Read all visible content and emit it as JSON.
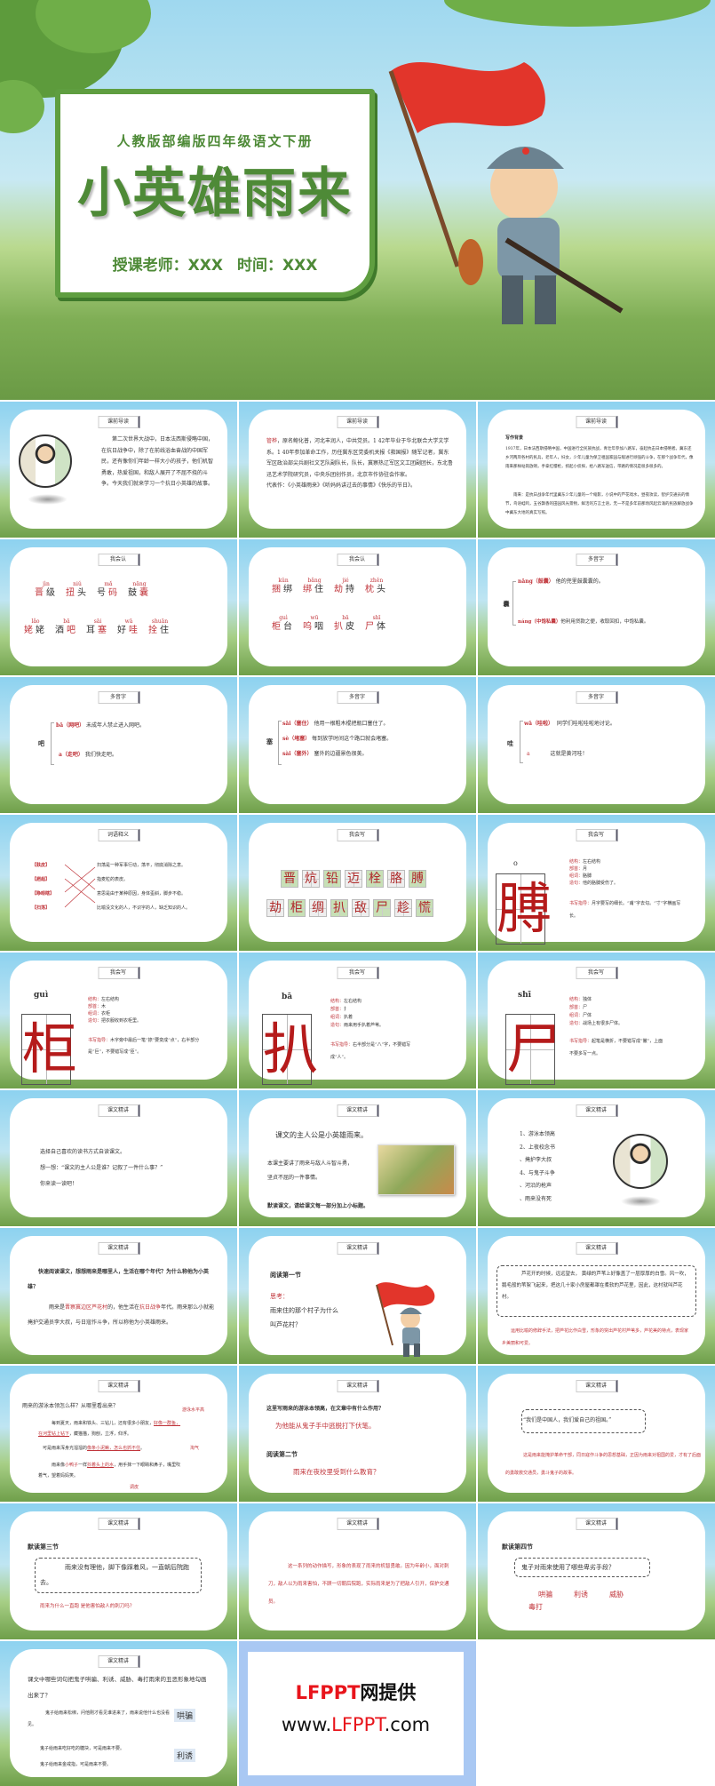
{
  "cover": {
    "subtitle": "人教版部编版四年级语文下册",
    "title": "小英雄雨来",
    "teacher": "授课老师：XXX",
    "time": "时间：XXX"
  },
  "slides": [
    {
      "header": "课前导读",
      "text": "第二次世界大战中，日本法西斯侵略中国，在抗日战争中，除了在前线浴血奋战的中国军民，还有像你们年龄一样大小的孩子，他们机智勇敢，热爱祖国，和敌人展开了不屈不挠的斗争。今天我们就来学习一个抗日小英雄的故事。"
    },
    {
      "header": "课前导读",
      "author": "管桦",
      "bio": "，原名鲍化普，河北丰润人，中共党员。1 42年毕业于华北联合大学文学系。1 40年参加革命工作，历任冀东区党委机关报《救国报》随军记者，冀东军区政治部尖兵剧社文艺队副队长，队长，冀察热辽军区文工团副团长，东北鲁迅艺术学院研究员，中央乐团创作员，北京市作协驻会作家。",
      "works": "代表作：《小英雄雨来》《听妈妈讲过去的事情》《快乐的节日》。"
    },
    {
      "header": "课前导读",
      "title": "写作背景",
      "p1": "1937年，日本法西斯侵略中国，中国进行全民族抗战，青壮年参加八路军，奋起抗击日本侵略者。冀东还乡河两岸各村的民兵，老年人，妇女，少年儿童为保卫祖国家园与敌进行顽强的斗争，在那个战争年代，像雨来那样站岗放哨，手拿红缨枪，抓起小侦探，给八路军送信，带路的情况是很多很多的。",
      "p2": "雨来：是抗日战争年代里冀东少年儿童的一个缩影，小说中的芦花戏水，昼夜攻读，智护交通员的情节，鸟语蛙鸣，五谷飘香的田园风光景物，鲜活的方言土语，无一不是多年前那场风起云涌的民族解放战争中冀东大地的真实写照。"
    },
    {
      "header": "我会认",
      "row1": [
        {
          "py": "jìn",
          "pre": "",
          "red": "晋",
          "post": "级"
        },
        {
          "py": "niǔ",
          "pre": "",
          "red": "扭",
          "post": "头"
        },
        {
          "py": "mǎ",
          "pre": "号",
          "red": "码",
          "post": ""
        },
        {
          "py": "nāng",
          "pre": "鼓",
          "red": "囊",
          "post": ""
        }
      ],
      "row2": [
        {
          "py": "lǎo",
          "pre": "",
          "red": "姥",
          "post": "姥"
        },
        {
          "py": "bā",
          "pre": "酒",
          "red": "吧",
          "post": ""
        },
        {
          "py": "sāi",
          "pre": "耳",
          "red": "塞",
          "post": ""
        },
        {
          "py": "wā",
          "pre": "好",
          "red": "哇",
          "post": ""
        },
        {
          "py": "shuān",
          "pre": "",
          "red": "拴",
          "post": "住"
        }
      ]
    },
    {
      "header": "我会认",
      "row1": [
        {
          "py": "kǔn",
          "pre": "",
          "red": "捆",
          "post": "绑"
        },
        {
          "py": "bǎng",
          "pre": "",
          "red": "绑",
          "post": "住"
        },
        {
          "py": "jié",
          "pre": "",
          "red": "劫",
          "post": "持"
        },
        {
          "py": "zhěn",
          "pre": "",
          "red": "枕",
          "post": "头"
        }
      ],
      "row2": [
        {
          "py": "guì",
          "pre": "",
          "red": "柜",
          "post": "台"
        },
        {
          "py": "wū",
          "pre": "",
          "red": "呜",
          "post": "咽"
        },
        {
          "py": "bā",
          "pre": "",
          "red": "扒",
          "post": "皮"
        },
        {
          "py": "shī",
          "pre": "",
          "red": "尸",
          "post": "体"
        }
      ]
    },
    {
      "header": "多音字",
      "char": "囊",
      "items": [
        {
          "py": "nāng（鼓囊）",
          "ex": "他的兜里鼓囊囊的。"
        },
        {
          "py": "náng（中饱私囊）",
          "ex": "他利用贷款之便，收取回扣，中饱私囊。"
        }
      ]
    },
    {
      "header": "多音字",
      "char": "吧",
      "items": [
        {
          "py": "bā（网吧）",
          "ex": "未成年人禁止进入网吧。"
        },
        {
          "py": "a（走吧）",
          "ex": "我们快走吧。"
        }
      ]
    },
    {
      "header": "多音字",
      "char": "塞",
      "items": [
        {
          "py": "sāi（塞住）",
          "ex": "他用一根粗木棍把瓶口塞住了。"
        },
        {
          "py": "sè（堵塞）",
          "ex": "每到放学时间这个路口就会堵塞。"
        },
        {
          "py": "sài（塞外）",
          "ex": "塞外的边疆景色很美。"
        }
      ]
    },
    {
      "header": "多音字",
      "char": "哇",
      "items": [
        {
          "py": "wā（哇啦）",
          "ex": "同学们哇啦哇啦地讨论。"
        },
        {
          "py": "a",
          "ex": "这就是黄河哇！"
        }
      ]
    },
    {
      "header": "词语释义",
      "terms": [
        "【麸皮】",
        "【趔趄】",
        "【睁眼瞎】",
        "【扫荡】"
      ],
      "defs": [
        "扫荡是一种军事行动，荡平，彻底消除之意。",
        "指麦粒的表皮。",
        "意思是由于某种原因，身体歪斜，脚步不稳。",
        "比喻没文化的人，不识字的人，缺乏知识的人。"
      ]
    },
    {
      "header": "我会写",
      "row1": [
        "晋",
        "炕",
        "铅",
        "迈",
        "栓",
        "胳",
        "膊"
      ],
      "row2": [
        "劫",
        "柜",
        "绸",
        "扒",
        "敌",
        "尸",
        "趁",
        "慌"
      ]
    },
    {
      "header": "我会写",
      "py": "o",
      "char": "膊",
      "structure_label": "结构：",
      "structure": "左右结构",
      "radical_label": "部首：",
      "radical": "月",
      "word_label": "组词：",
      "word": "胳膊",
      "sentence_label": "造句：",
      "sentence": "他的胳膊受伤了。",
      "guide_label": "书写指导：",
      "guide": "月字要写的细长。“甫”字去勾。“寸”字横画写长。"
    },
    {
      "header": "我会写",
      "py": "guì",
      "char": "柜",
      "structure_label": "结构：",
      "structure": "左右结构",
      "radical_label": "部首：",
      "radical": "木",
      "word_label": "组词：",
      "word": "衣柜",
      "sentence_label": "造句：",
      "sentence": "把衣服收到衣柜里。",
      "guide_label": "书写指导：",
      "guide": "木字旁中最后一笔“捺”要变成“点”，右半部分是“巨”，不要错写成“臣”。"
    },
    {
      "header": "我会写",
      "py": "bā",
      "char": "扒",
      "structure_label": "结构：",
      "structure": "左右结构",
      "radical_label": "部首：",
      "radical": "扌",
      "word_label": "组词：",
      "word": "扒着",
      "sentence_label": "造句：",
      "sentence": "雨来用手扒着芦苇。",
      "guide_label": "书写指导：",
      "guide": "右半部分是“八”字，不要错写成“人”。"
    },
    {
      "header": "我会写",
      "py": "shī",
      "char": "尸",
      "structure_label": "结构：",
      "structure": "独体",
      "radical_label": "部首：",
      "radical": "尸",
      "word_label": "组词：",
      "word": "尸体",
      "sentence_label": "造句：",
      "sentence": "战场上有很多尸体。",
      "guide_label": "书写指导：",
      "guide": "起笔是横折，不要错写成“撇”，上面不要多写一点。"
    },
    {
      "header": "课文精讲",
      "lines": [
        "选择自己喜欢的读书方式自读课文。",
        "想一想：“课文的主人公是谁？记叙了一件什么事？”",
        "你来读一读吧！"
      ]
    },
    {
      "header": "课文精讲",
      "main": "课文的主人公是小英雄雨来。",
      "summary": "本课主要讲了雨来与敌人斗智斗勇，坚贞不屈的一件事情。",
      "task": "默读课文，请给课文每一部分加上小标题。"
    },
    {
      "header": "课文精讲",
      "list": [
        "1、游泳本领高",
        "2、上夜校念书",
        "、掩护李大叔",
        "4、与鬼子斗争",
        "、河沿的枪声",
        "、雨来没有死"
      ]
    },
    {
      "header": "课文精讲",
      "question": "快速阅读课文，想想雨来是哪里人，生活在哪个年代？为什么称他为小英雄？",
      "a1": "雨来是",
      "a2": "晋察冀边区芦花村",
      "a3": "的，他生活在",
      "a4": "抗日战争",
      "a5": "年代。雨来那么小就能掩护交通员李大叔，与日寇作斗争，所以称他为小英雄雨来。"
    },
    {
      "header": "课文精讲",
      "title": "阅读第一节",
      "think": "思考：",
      "question": "雨来住的那个村子为什么叫芦花村？"
    },
    {
      "header": "课文精讲",
      "quote": "芦花开的时候，远远望去， 黄绿的芦苇上好像盖了一层厚厚的白雪。风一吹，鹅毛般的苇絮飞起来，把这几十家小房屋都罩在柔软的芦花里，因此，这村就叫芦花村。",
      "analysis": "运用比喻的修辞手法，把芦花比作白雪，形象的突出芦花村芦苇多，芦花美的特点，表现家乡美丽和可爱。"
    },
    {
      "header": "课文精讲",
      "question": "雨来的游泳本领怎么样？从哪里看出来？",
      "note1": "游泳水平高",
      "note2": "淘气",
      "note3": "调皮",
      "p1": "每到夏天，雨来和铁头、三钻儿，还有很多小朋友，",
      "p1u": "好像一群鱼，在河里钻上钻下",
      "p1b": "，藏猫猫，狗刨，立浮，仰浮。",
      "p2": "可是雨来浑身光溜溜的",
      "p2u": "像条小泥鳅，怎么也抓不住",
      "p2b": "。",
      "p3": "雨来像",
      "p3r": "小鸭子",
      "p3c": "一样",
      "p3u": "抖着头上的水",
      "p3b": "，用手抹一下眼睛和鼻子，嘴里吹着气，望着妈妈笑。"
    },
    {
      "header": "课文精讲",
      "question": "这里写雨来的游泳本领高，在文章中有什么作用？",
      "answer": "为他能从鬼子手中逃脱打下伏笔。",
      "title2": "阅读第二节",
      "question2": "雨来在夜校里受到什么教育？"
    },
    {
      "header": "课文精讲",
      "quote": "“我们是中国人，我们爱自己的祖国。”",
      "analysis": "这是雨来能掩护革命干部，同日寇作斗争的思想基础，正因为雨来对祖国的爱，才有了后面的勇敢救交通员，勇斗鬼子的故事。"
    },
    {
      "header": "课文精讲",
      "title": "默读第三节",
      "quote": "雨来没有理他，脚下像踩着风，一直朝后院跑去。",
      "question": "雨来为什么一直跑 是他害怕敌人的刺刀吗？"
    },
    {
      "header": "课文精讲",
      "analysis": "这一系列的动作描写，形象的表现了雨来的机智勇敢。因为年龄小，面对刺刀，敌人以为雨来害怕，不顾一切朝后院跑，实际雨来是为了把敌人引开，保护交通员。"
    },
    {
      "header": "课文精讲",
      "title": "默读第四节",
      "question": "鬼子对雨来使用了哪些卑劣手段？",
      "answers": [
        "哄骗",
        "利诱",
        "威胁",
        "毒打"
      ]
    },
    {
      "header": "课文精讲",
      "question": "课文中哪些词句把鬼子哄骗、利诱、威胁、毒打雨来的丑恶形象地勾画出来了？",
      "ex1": "鬼子给雨来松绑，问他刚才看见谁进来了，雨来说他什么也没看见。",
      "tag1": "哄骗",
      "ex2a": "鬼子给雨来吃好吃的糖块，可是雨来不要。",
      "ex2b": "鬼子给雨来金戒指，可是雨来不要。",
      "tag2": "利诱"
    }
  ],
  "ad": {
    "line1_red": "LFPPT",
    "line1_black": "网提供",
    "line2_pre": "www.",
    "line2_red": "LFPPT",
    "line2_post": ".com"
  },
  "colors": {
    "accent_green": "#4e8a37",
    "text_red": "#c0343a",
    "ad_red": "#e8141b",
    "ad_bg": "#a9c8f3"
  }
}
